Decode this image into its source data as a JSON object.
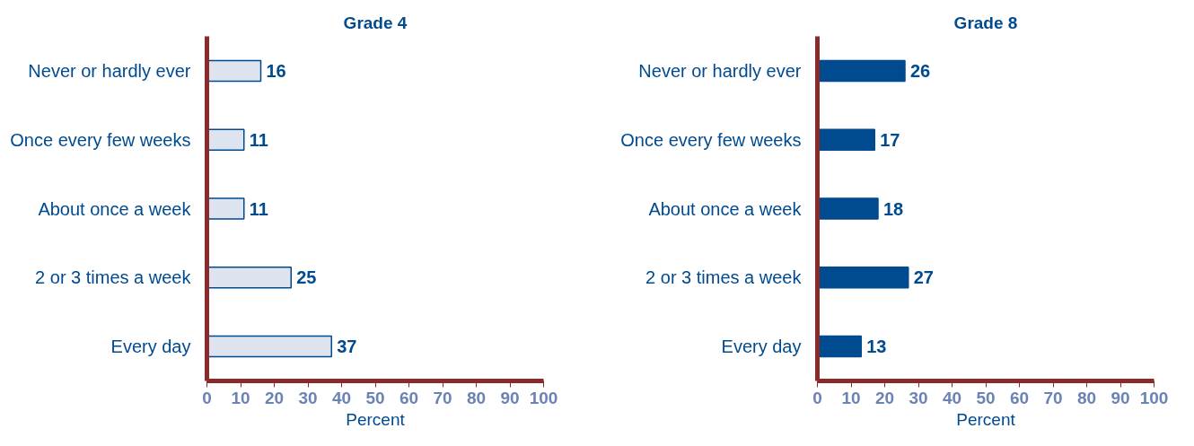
{
  "chart_data": [
    {
      "type": "bar",
      "orientation": "horizontal",
      "title": "Grade 4",
      "xlabel": "Percent",
      "categories": [
        "Never or hardly ever",
        "Once every few weeks",
        "About once a week",
        "2 or 3 times a week",
        "Every day"
      ],
      "values": [
        16,
        11,
        11,
        25,
        37
      ],
      "color": "#dde3ef",
      "xlim": [
        0,
        100
      ],
      "xticks": [
        0,
        10,
        20,
        30,
        40,
        50,
        60,
        70,
        80,
        90,
        100
      ],
      "grid": false,
      "data_labels": true
    },
    {
      "type": "bar",
      "orientation": "horizontal",
      "title": "Grade 8",
      "xlabel": "Percent",
      "categories": [
        "Never or hardly ever",
        "Once every few weeks",
        "About once a week",
        "2 or 3 times a week",
        "Every day"
      ],
      "values": [
        26,
        17,
        18,
        27,
        13
      ],
      "color": "#004a8f",
      "xlim": [
        0,
        100
      ],
      "xticks": [
        0,
        10,
        20,
        30,
        40,
        50,
        60,
        70,
        80,
        90,
        100
      ],
      "grid": false,
      "data_labels": true
    }
  ]
}
